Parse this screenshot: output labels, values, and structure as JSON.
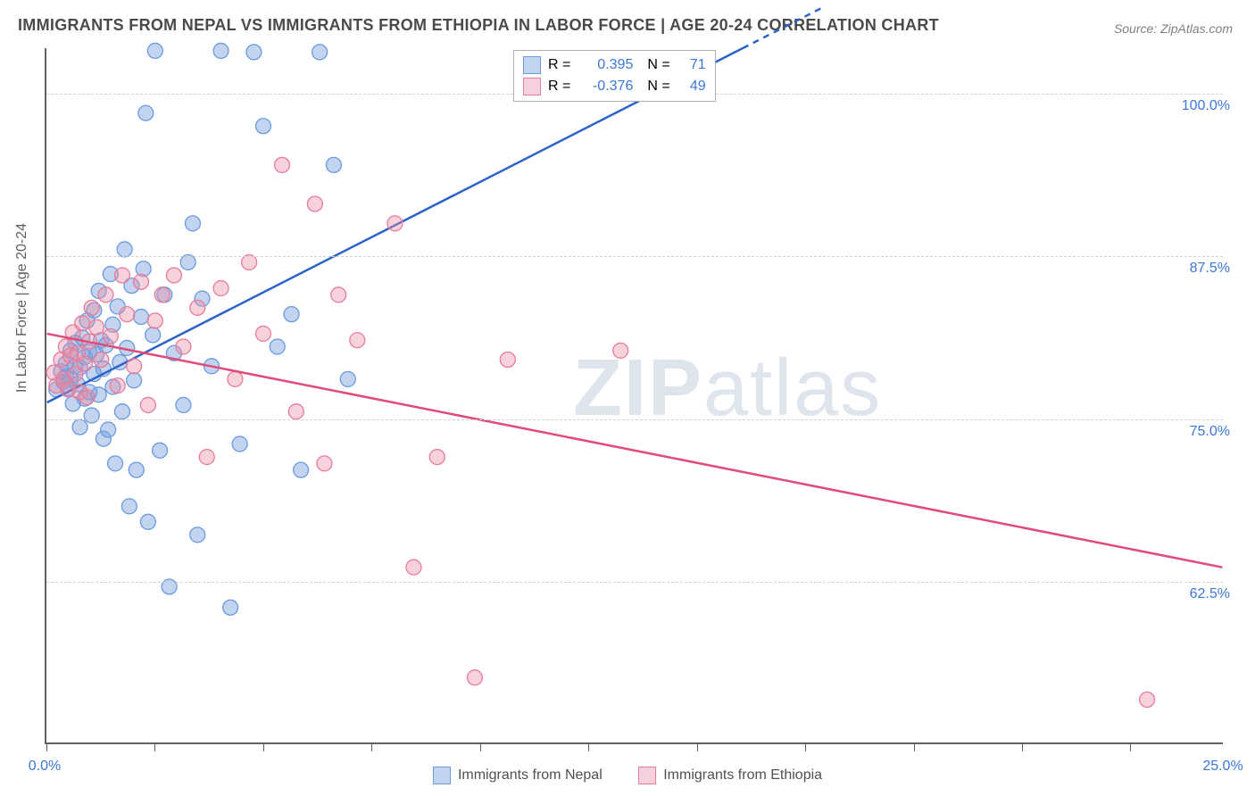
{
  "title": "IMMIGRANTS FROM NEPAL VS IMMIGRANTS FROM ETHIOPIA IN LABOR FORCE | AGE 20-24 CORRELATION CHART",
  "source": "Source: ZipAtlas.com",
  "ylabel": "In Labor Force | Age 20-24",
  "watermark_bold": "ZIP",
  "watermark_light": "atlas",
  "chart": {
    "type": "scatter",
    "xlim": [
      0,
      25
    ],
    "ylim": [
      50,
      103.5
    ],
    "xtick_positions": [
      0,
      2.3,
      4.6,
      6.9,
      9.2,
      11.5,
      13.8,
      16.1,
      18.4,
      20.7,
      23.0
    ],
    "xtick_labels": {
      "0": "0.0%",
      "25": "25.0%"
    },
    "ytick_positions": [
      62.5,
      75.0,
      87.5,
      100.0
    ],
    "ytick_labels": [
      "62.5%",
      "75.0%",
      "87.5%",
      "100.0%"
    ],
    "grid_color": "#d0d0d0",
    "axis_color": "#606060",
    "background_color": "#ffffff",
    "series": [
      {
        "name": "Immigrants from Nepal",
        "color_fill": "rgba(120,160,220,0.45)",
        "color_stroke": "#6a9be0",
        "marker_radius": 8.5,
        "trend_color": "#2c62c9",
        "trend_width": 2.5,
        "trend": {
          "x1": 0,
          "y1": 76.2,
          "x2": 14.8,
          "y2": 103.5,
          "extend_dash_to_x": 16.5
        },
        "R": "0.395",
        "N": "71",
        "points": [
          [
            0.2,
            77.2
          ],
          [
            0.3,
            78.6
          ],
          [
            0.35,
            77.8
          ],
          [
            0.4,
            78.2
          ],
          [
            0.4,
            79.2
          ],
          [
            0.45,
            77.3
          ],
          [
            0.5,
            78.0
          ],
          [
            0.5,
            80.2
          ],
          [
            0.55,
            76.1
          ],
          [
            0.6,
            79.0
          ],
          [
            0.6,
            80.8
          ],
          [
            0.65,
            77.6
          ],
          [
            0.7,
            78.9
          ],
          [
            0.7,
            74.3
          ],
          [
            0.75,
            81.2
          ],
          [
            0.8,
            76.5
          ],
          [
            0.8,
            79.7
          ],
          [
            0.85,
            82.5
          ],
          [
            0.9,
            80.1
          ],
          [
            0.9,
            77.0
          ],
          [
            0.95,
            75.2
          ],
          [
            1.0,
            78.4
          ],
          [
            1.0,
            83.3
          ],
          [
            1.05,
            79.9
          ],
          [
            1.1,
            76.8
          ],
          [
            1.1,
            84.8
          ],
          [
            1.15,
            81.0
          ],
          [
            1.2,
            73.4
          ],
          [
            1.2,
            78.8
          ],
          [
            1.25,
            80.6
          ],
          [
            1.3,
            74.1
          ],
          [
            1.35,
            86.1
          ],
          [
            1.4,
            77.4
          ],
          [
            1.4,
            82.2
          ],
          [
            1.45,
            71.5
          ],
          [
            1.5,
            83.6
          ],
          [
            1.55,
            79.3
          ],
          [
            1.6,
            75.5
          ],
          [
            1.65,
            88.0
          ],
          [
            1.7,
            80.4
          ],
          [
            1.75,
            68.2
          ],
          [
            1.8,
            85.2
          ],
          [
            1.85,
            77.9
          ],
          [
            1.9,
            71.0
          ],
          [
            2.0,
            82.8
          ],
          [
            2.05,
            86.5
          ],
          [
            2.1,
            98.5
          ],
          [
            2.15,
            67.0
          ],
          [
            2.25,
            81.4
          ],
          [
            2.3,
            103.3
          ],
          [
            2.4,
            72.5
          ],
          [
            2.5,
            84.5
          ],
          [
            2.6,
            62.0
          ],
          [
            2.7,
            80.0
          ],
          [
            2.9,
            76.0
          ],
          [
            3.0,
            87.0
          ],
          [
            3.1,
            90.0
          ],
          [
            3.2,
            66.0
          ],
          [
            3.3,
            84.2
          ],
          [
            3.5,
            79.0
          ],
          [
            3.7,
            103.3
          ],
          [
            3.9,
            60.4
          ],
          [
            4.1,
            73.0
          ],
          [
            4.4,
            103.2
          ],
          [
            4.6,
            97.5
          ],
          [
            4.9,
            80.5
          ],
          [
            5.2,
            83.0
          ],
          [
            5.4,
            71.0
          ],
          [
            5.8,
            103.2
          ],
          [
            6.1,
            94.5
          ],
          [
            6.4,
            78.0
          ]
        ]
      },
      {
        "name": "Immigrants from Ethiopia",
        "color_fill": "rgba(235,140,165,0.40)",
        "color_stroke": "#e77d9a",
        "marker_radius": 8.5,
        "trend_color": "#e04b7a",
        "trend_width": 2.5,
        "trend": {
          "x1": 0,
          "y1": 81.5,
          "x2": 25,
          "y2": 63.5
        },
        "R": "-0.376",
        "N": "49",
        "points": [
          [
            0.15,
            78.5
          ],
          [
            0.2,
            77.5
          ],
          [
            0.3,
            79.5
          ],
          [
            0.35,
            78.0
          ],
          [
            0.4,
            80.5
          ],
          [
            0.45,
            77.2
          ],
          [
            0.5,
            79.8
          ],
          [
            0.55,
            81.6
          ],
          [
            0.6,
            78.4
          ],
          [
            0.65,
            80.0
          ],
          [
            0.7,
            77.0
          ],
          [
            0.75,
            82.3
          ],
          [
            0.8,
            79.2
          ],
          [
            0.85,
            76.6
          ],
          [
            0.9,
            80.9
          ],
          [
            0.95,
            83.5
          ],
          [
            1.05,
            82.0
          ],
          [
            1.15,
            79.5
          ],
          [
            1.25,
            84.5
          ],
          [
            1.35,
            81.3
          ],
          [
            1.5,
            77.5
          ],
          [
            1.6,
            86.0
          ],
          [
            1.7,
            83.0
          ],
          [
            1.85,
            79.0
          ],
          [
            2.0,
            85.5
          ],
          [
            2.15,
            76.0
          ],
          [
            2.3,
            82.5
          ],
          [
            2.45,
            84.5
          ],
          [
            2.7,
            86.0
          ],
          [
            2.9,
            80.5
          ],
          [
            3.2,
            83.5
          ],
          [
            3.4,
            72.0
          ],
          [
            3.7,
            85.0
          ],
          [
            4.0,
            78.0
          ],
          [
            4.3,
            87.0
          ],
          [
            4.6,
            81.5
          ],
          [
            5.0,
            94.5
          ],
          [
            5.3,
            75.5
          ],
          [
            5.7,
            91.5
          ],
          [
            5.9,
            71.5
          ],
          [
            6.2,
            84.5
          ],
          [
            6.6,
            81.0
          ],
          [
            7.4,
            90.0
          ],
          [
            7.8,
            63.5
          ],
          [
            8.3,
            72.0
          ],
          [
            9.1,
            55.0
          ],
          [
            9.8,
            79.5
          ],
          [
            12.2,
            80.2
          ],
          [
            23.4,
            53.3
          ]
        ]
      }
    ]
  },
  "legend_top": {
    "r_label": "R =",
    "n_label": "N ="
  },
  "legend_bottom": {
    "items": [
      "Immigrants from Nepal",
      "Immigrants from Ethiopia"
    ]
  }
}
